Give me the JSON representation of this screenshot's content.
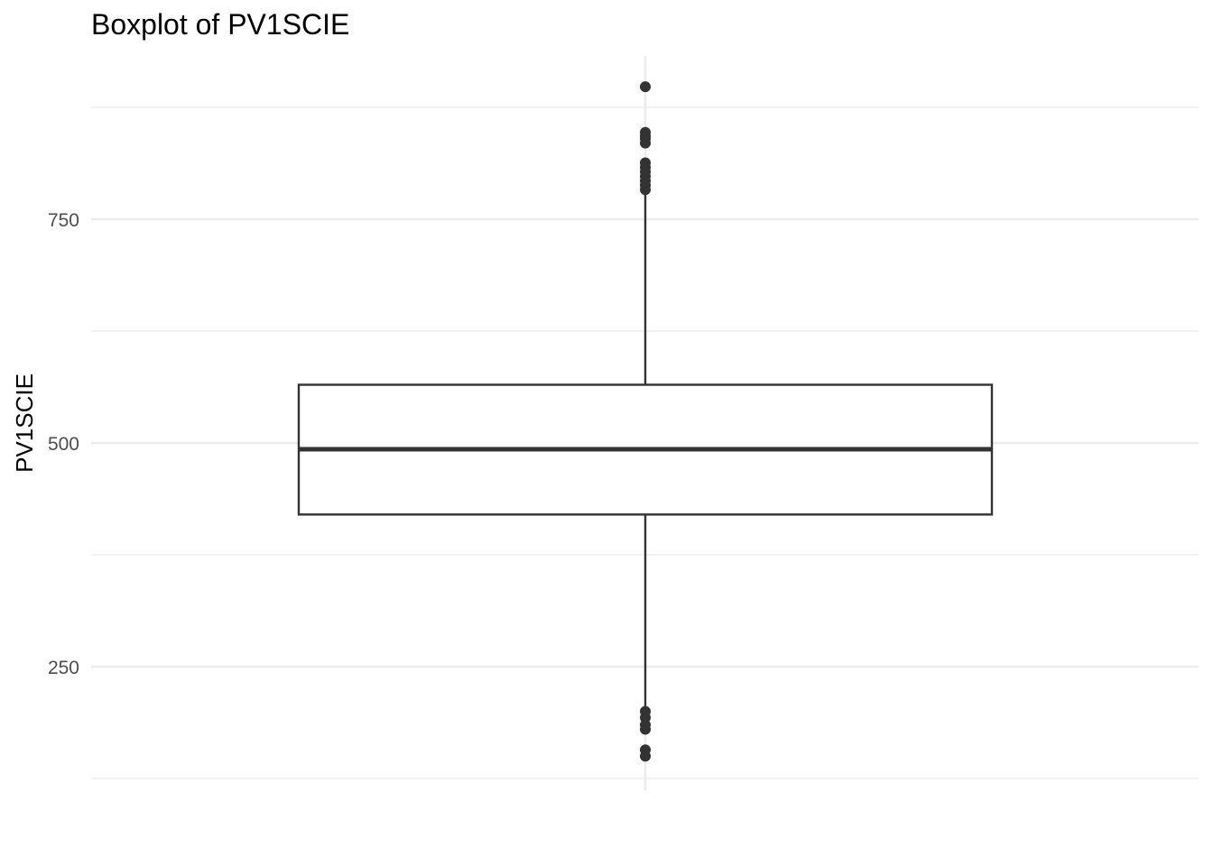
{
  "chart_data": {
    "type": "boxplot",
    "title": "Boxplot of PV1SCIE",
    "xlabel": "",
    "ylabel": "PV1SCIE",
    "ylim": [
      125,
      890
    ],
    "yticks": [
      250,
      500,
      750
    ],
    "ytick_labels": [
      "250",
      "500",
      "750"
    ],
    "minor_gridlines": [
      125,
      375,
      625,
      875
    ],
    "grid": true,
    "box": {
      "q1": 420,
      "median": 493,
      "q3": 565,
      "whisker_low": 205,
      "whisker_high": 781
    },
    "outliers": [
      898,
      847,
      843,
      840,
      835,
      813,
      808,
      803,
      798,
      793,
      788,
      783,
      200,
      193,
      185,
      180,
      157,
      150
    ],
    "colors": {
      "box_stroke": "#333333",
      "box_fill": "#ffffff",
      "points": "#333333",
      "grid": "#ebebeb",
      "tick_text": "#4d4d4d"
    }
  }
}
